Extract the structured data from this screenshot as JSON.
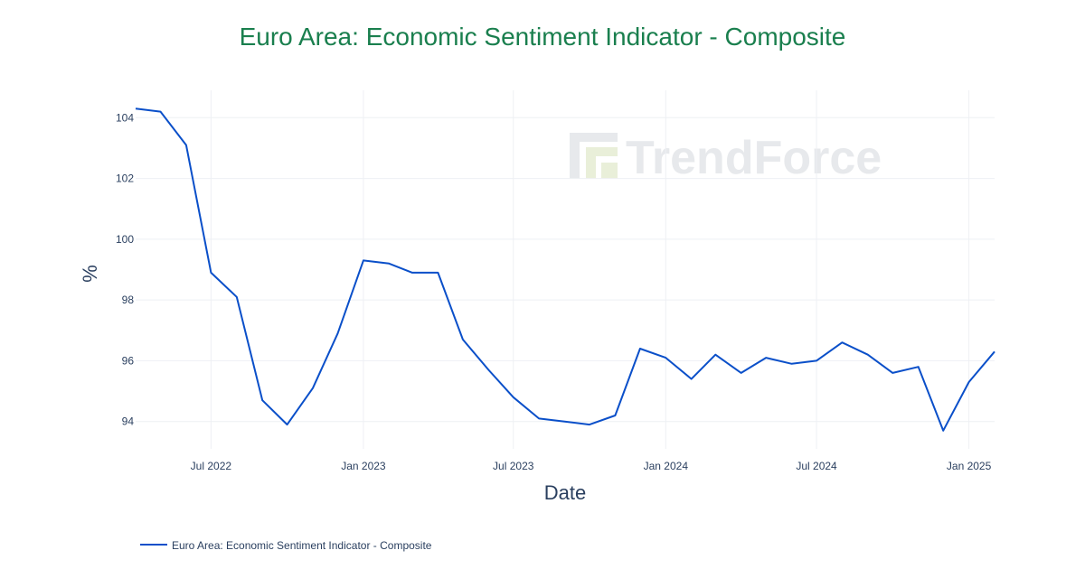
{
  "watermark": {
    "text": "TrendForce"
  },
  "colors": {
    "title": "#1a7f4e",
    "line": "#0a4fc9",
    "grid": "#eef0f4",
    "text": "#2a3f5f",
    "watermark": "#e7e9ec"
  },
  "chart_data": {
    "type": "line",
    "title": "Euro Area: Economic Sentiment Indicator - Composite",
    "xlabel": "Date",
    "ylabel": "%",
    "ylim": [
      93.1,
      104.9
    ],
    "xlim": [
      "2022-04-01",
      "2025-02-01"
    ],
    "grid": true,
    "legend_position": "bottom-left",
    "y_ticks": [
      94,
      96,
      98,
      100,
      102,
      104
    ],
    "x_ticks": [
      {
        "date": "2022-07-01",
        "label": "Jul 2022"
      },
      {
        "date": "2023-01-01",
        "label": "Jan 2023"
      },
      {
        "date": "2023-07-01",
        "label": "Jul 2023"
      },
      {
        "date": "2024-01-01",
        "label": "Jan 2024"
      },
      {
        "date": "2024-07-01",
        "label": "Jul 2024"
      },
      {
        "date": "2025-01-01",
        "label": "Jan 2025"
      }
    ],
    "series": [
      {
        "name": "Euro Area: Economic Sentiment Indicator - Composite",
        "x": [
          "2022-04-01",
          "2022-05-01",
          "2022-06-01",
          "2022-07-01",
          "2022-08-01",
          "2022-09-01",
          "2022-10-01",
          "2022-11-01",
          "2022-12-01",
          "2023-01-01",
          "2023-02-01",
          "2023-03-01",
          "2023-04-01",
          "2023-05-01",
          "2023-06-01",
          "2023-07-01",
          "2023-08-01",
          "2023-09-01",
          "2023-10-01",
          "2023-11-01",
          "2023-12-01",
          "2024-01-01",
          "2024-02-01",
          "2024-03-01",
          "2024-04-01",
          "2024-05-01",
          "2024-06-01",
          "2024-07-01",
          "2024-08-01",
          "2024-09-01",
          "2024-10-01",
          "2024-11-01",
          "2024-12-01",
          "2025-01-01",
          "2025-02-01"
        ],
        "values": [
          104.3,
          104.2,
          103.1,
          98.9,
          98.1,
          94.7,
          93.9,
          95.1,
          96.9,
          99.3,
          99.2,
          98.9,
          98.9,
          96.7,
          95.7,
          94.8,
          94.1,
          94.0,
          93.9,
          94.2,
          96.4,
          96.1,
          95.4,
          96.2,
          95.6,
          96.1,
          95.9,
          96.0,
          96.6,
          96.2,
          95.6,
          95.8,
          93.7,
          95.3,
          96.3
        ]
      }
    ]
  }
}
